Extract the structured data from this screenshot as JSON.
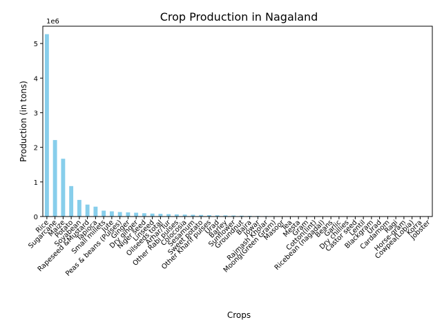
{
  "chart_data": {
    "type": "bar",
    "title": "Crop Production in Nagaland",
    "xlabel": "Crops",
    "ylabel": "Production (in tons)",
    "y_offset_label": "1e6",
    "ylim": [
      0,
      5500000
    ],
    "yticks": [
      0,
      1000000,
      2000000,
      3000000,
      4000000,
      5000000
    ],
    "ytick_labels": [
      "0",
      "1",
      "2",
      "3",
      "4",
      "5"
    ],
    "bar_color": "#87ceeb",
    "grid": false,
    "legend": false,
    "categories": [
      "Rice",
      "Sugarcane",
      "Maize",
      "Potato",
      "Soyabean",
      "Rapeseed &Mustard",
      "Tapioca",
      "Small millets",
      "Jute",
      "Peas & beans (Pulses)",
      "Ginger",
      "Dry ginger",
      "Niger seed",
      "Linseed",
      "Oilseeds total",
      "Arhar/Tur",
      "Other Rabi pulses",
      "Colocosia",
      "Sesamum",
      "Sweet potato",
      "Other Kharif pulses",
      "Urad",
      "Barley",
      "Sunflower",
      "Groundnut",
      "Bajra",
      "Jowar",
      "Rajmash Kholar",
      "Moong(Green Gram)",
      "Masoor",
      "Tea",
      "Mesta",
      "Gram",
      "Cotton(lint)",
      "Ricebean (nagadal)",
      "Beans",
      "Garlic",
      "Dry chillies",
      "Castor seed",
      "Lentil",
      "Blackgram",
      "Urad",
      "Cardamom",
      "Ragi",
      "Horse-gram",
      "Cowpea(Lobia)",
      "Korra",
      "Jobster"
    ],
    "values": [
      5270000,
      2210000,
      1670000,
      880000,
      480000,
      345000,
      285000,
      170000,
      150000,
      130000,
      120000,
      110000,
      95000,
      85000,
      78000,
      70000,
      62000,
      56000,
      50000,
      45000,
      40000,
      36000,
      32000,
      28000,
      24000,
      20000,
      17000,
      14000,
      12000,
      10000,
      8500,
      7000,
      6000,
      5000,
      4200,
      3500,
      3000,
      2500,
      2000,
      1600,
      1300,
      1000,
      800,
      600,
      450,
      300,
      200,
      100
    ]
  }
}
